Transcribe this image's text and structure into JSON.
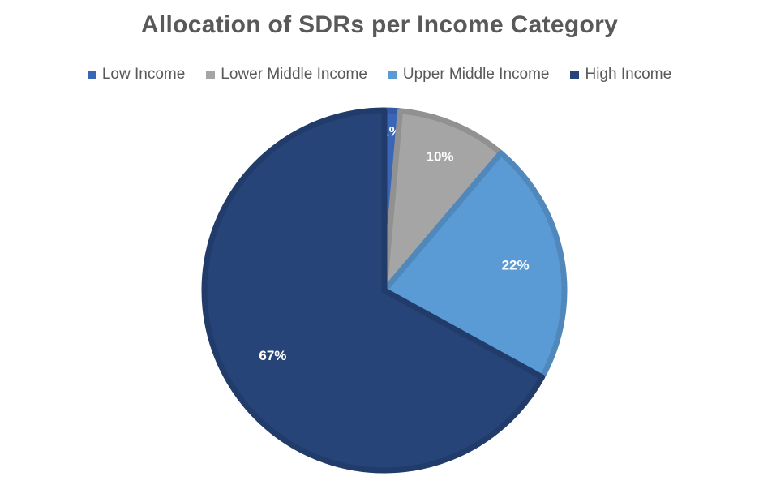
{
  "chart_data": {
    "type": "pie",
    "title": "Allocation of SDRs per Income Category",
    "categories": [
      "Low Income",
      "Lower Middle Income",
      "Upper Middle Income",
      "High Income"
    ],
    "values": [
      1.4,
      9.8,
      21.8,
      67.0
    ],
    "data_labels": [
      "1%",
      "10%",
      "22%",
      "67%"
    ],
    "colors": [
      "#3a66b8",
      "#a5a5a5",
      "#5b9bd5",
      "#264478"
    ],
    "legend_position": "top"
  }
}
